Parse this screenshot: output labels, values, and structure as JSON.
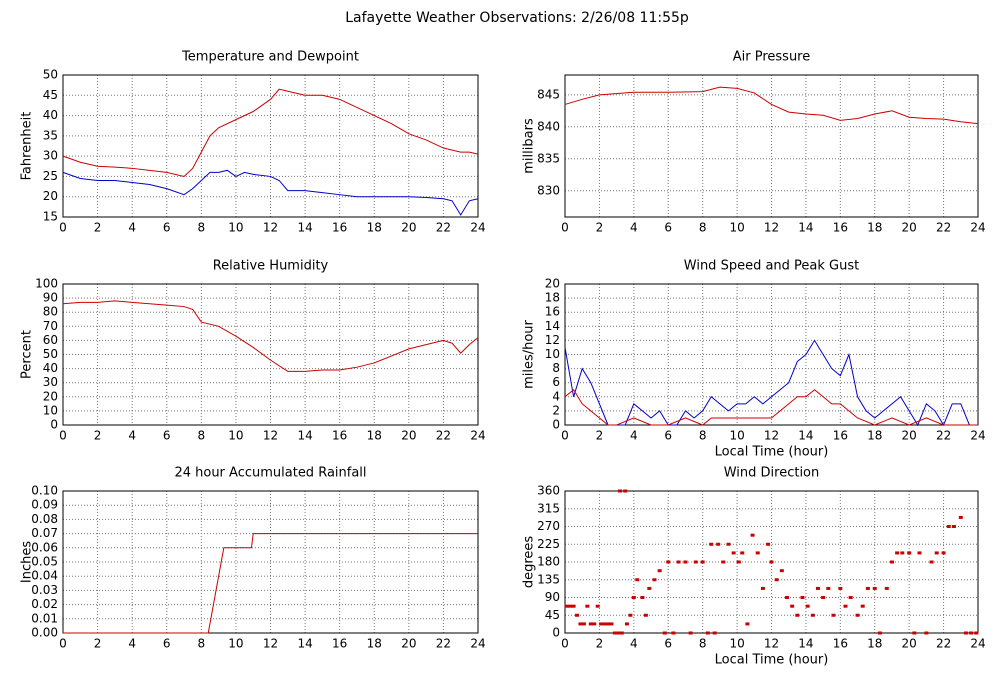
{
  "title": "Lafayette Weather Observations: 2/26/08 11:55p",
  "chart_data": [
    {
      "type": "line",
      "title": "Temperature and Dewpoint",
      "y_label": "Fahrenheit",
      "xlim": [
        0,
        24
      ],
      "xticks": [
        0,
        2,
        4,
        6,
        8,
        10,
        12,
        14,
        16,
        18,
        20,
        22,
        24
      ],
      "ylim": [
        15,
        50
      ],
      "yticks": [
        15,
        20,
        25,
        30,
        35,
        40,
        45,
        50
      ],
      "grid": true,
      "series": [
        {
          "color": "#cc0000",
          "x": [
            0,
            1,
            2,
            3,
            4,
            5,
            6,
            7,
            7.5,
            8,
            8.5,
            9,
            10,
            11,
            12,
            12.5,
            13,
            14,
            15,
            16,
            17,
            18,
            19,
            20,
            21,
            22,
            23,
            23.5,
            24
          ],
          "values": [
            30,
            28.5,
            27.5,
            27.3,
            27,
            26.5,
            26,
            25,
            27,
            31,
            35,
            37,
            39,
            41,
            44,
            46.5,
            46,
            45,
            45,
            44,
            42,
            40,
            38,
            35.5,
            34,
            32,
            31,
            31,
            30.5
          ]
        },
        {
          "color": "#0000cc",
          "x": [
            0,
            1,
            2,
            3,
            4,
            5,
            6,
            7,
            7.5,
            8,
            8.5,
            9,
            9.5,
            10,
            10.5,
            11,
            12,
            12.5,
            13,
            14,
            15,
            16,
            17,
            18,
            19,
            20,
            21,
            22,
            22.5,
            23,
            23.5,
            24
          ],
          "values": [
            26,
            24.5,
            24,
            24,
            23.5,
            23,
            22,
            20.5,
            22,
            24,
            26,
            26,
            26.5,
            25,
            26,
            25.5,
            25,
            24,
            21.5,
            21.5,
            21,
            20.5,
            20,
            20,
            20,
            20,
            19.8,
            19.5,
            19,
            15.5,
            19,
            19.5
          ]
        }
      ]
    },
    {
      "type": "line",
      "title": "Air Pressure",
      "y_label": "millibars",
      "xlim": [
        0,
        24
      ],
      "xticks": [
        0,
        2,
        4,
        6,
        8,
        10,
        12,
        14,
        16,
        18,
        20,
        22,
        24
      ],
      "ylim": [
        825.9,
        848.1
      ],
      "yticks": [
        830,
        835,
        840,
        845
      ],
      "grid": true,
      "series": [
        {
          "color": "#cc0000",
          "x": [
            0,
            1,
            2,
            4,
            6,
            8,
            9,
            10,
            11,
            12,
            13,
            14,
            15,
            16,
            17,
            18,
            19,
            20,
            21,
            22,
            23,
            24
          ],
          "values": [
            843.5,
            844.3,
            845,
            845.4,
            845.4,
            845.5,
            846.2,
            846,
            845.3,
            843.5,
            842.3,
            842,
            841.8,
            841,
            841.3,
            842,
            842.5,
            841.5,
            841.3,
            841.2,
            840.8,
            840.5
          ]
        }
      ]
    },
    {
      "type": "line",
      "title": "Relative Humidity",
      "y_label": "Percent",
      "xlim": [
        0,
        24
      ],
      "xticks": [
        0,
        2,
        4,
        6,
        8,
        10,
        12,
        14,
        16,
        18,
        20,
        22,
        24
      ],
      "ylim": [
        0,
        100
      ],
      "yticks": [
        0,
        10,
        20,
        30,
        40,
        50,
        60,
        70,
        80,
        90,
        100
      ],
      "grid": true,
      "series": [
        {
          "color": "#cc0000",
          "x": [
            0,
            1,
            2,
            3,
            4,
            5,
            6,
            7,
            7.5,
            8,
            9,
            10,
            11,
            12,
            13,
            14,
            15,
            16,
            17,
            18,
            19,
            20,
            21,
            22,
            22.5,
            23,
            23.5,
            24
          ],
          "values": [
            86,
            87,
            87,
            88,
            87,
            86,
            85,
            84,
            82,
            73,
            70,
            63,
            55,
            46,
            38,
            38,
            39,
            39,
            41,
            44,
            49,
            54,
            57,
            60,
            58,
            51,
            57,
            62
          ]
        }
      ]
    },
    {
      "type": "line",
      "title": "Wind Speed and Peak Gust",
      "y_label": "miles/hour",
      "x_label": "Local Time (hour)",
      "xlim": [
        0,
        24
      ],
      "xticks": [
        0,
        2,
        4,
        6,
        8,
        10,
        12,
        14,
        16,
        18,
        20,
        22,
        24
      ],
      "ylim": [
        0,
        20
      ],
      "yticks": [
        0,
        2,
        4,
        6,
        8,
        10,
        12,
        14,
        16,
        18,
        20
      ],
      "grid": true,
      "series": [
        {
          "color": "#0000cc",
          "x": [
            0,
            0.5,
            1,
            1.5,
            2,
            2.5,
            3,
            3.5,
            4,
            4.5,
            5,
            5.5,
            6,
            6.5,
            7,
            7.5,
            8,
            8.5,
            9,
            9.5,
            10,
            10.5,
            11,
            11.5,
            12,
            12.5,
            13,
            13.5,
            14,
            14.5,
            15,
            15.5,
            16,
            16.5,
            17,
            17.5,
            18,
            18.5,
            19,
            19.5,
            20,
            20.5,
            21,
            21.5,
            22,
            22.5,
            23,
            23.5,
            24
          ],
          "values": [
            11,
            4,
            8,
            6,
            3,
            0,
            0,
            0,
            3,
            2,
            1,
            2,
            0,
            0,
            2,
            1,
            2,
            4,
            3,
            2,
            3,
            3,
            4,
            3,
            4,
            5,
            6,
            9,
            10,
            12,
            10,
            8,
            7,
            10,
            4,
            2,
            1,
            2,
            3,
            4,
            2,
            0,
            3,
            2,
            0,
            3,
            3,
            0,
            0
          ]
        },
        {
          "color": "#cc0000",
          "x": [
            0,
            0.5,
            1,
            1.5,
            2,
            2.5,
            3,
            4,
            5,
            6,
            7,
            8,
            8.5,
            9,
            10,
            11,
            12,
            12.5,
            13,
            13.5,
            14,
            14.5,
            15,
            15.5,
            16,
            16.5,
            17,
            18,
            19,
            20,
            21,
            22,
            23,
            24
          ],
          "values": [
            4,
            5,
            3,
            2,
            1,
            0,
            0,
            1,
            0,
            0,
            1,
            0,
            1,
            1,
            1,
            1,
            1,
            2,
            3,
            4,
            4,
            5,
            4,
            3,
            3,
            2,
            1,
            0,
            1,
            0,
            1,
            0,
            0,
            0
          ]
        }
      ]
    },
    {
      "type": "line",
      "title": "24 hour Accumulated Rainfall",
      "y_label": "Inches",
      "xlim": [
        0,
        24
      ],
      "xticks": [
        0,
        2,
        4,
        6,
        8,
        10,
        12,
        14,
        16,
        18,
        20,
        22,
        24
      ],
      "ylim": [
        0,
        0.1
      ],
      "yticks": [
        {
          "value": 0,
          "label": "0.00"
        },
        {
          "value": 0.01,
          "label": "0.01"
        },
        {
          "value": 0.02,
          "label": "0.02"
        },
        {
          "value": 0.03,
          "label": "0.03"
        },
        {
          "value": 0.04,
          "label": "0.04"
        },
        {
          "value": 0.05,
          "label": "0.05"
        },
        {
          "value": 0.06,
          "label": "0.06"
        },
        {
          "value": 0.07,
          "label": "0.07"
        },
        {
          "value": 0.08,
          "label": "0.08"
        },
        {
          "value": 0.09,
          "label": "0.09"
        },
        {
          "value": 0.1,
          "label": "0.10"
        }
      ],
      "grid": true,
      "series": [
        {
          "color": "#cc0000",
          "x": [
            0,
            8.4,
            9.3,
            10.9,
            11,
            24
          ],
          "values": [
            0,
            0,
            0.06,
            0.06,
            0.07,
            0.07
          ]
        }
      ]
    },
    {
      "type": "scatter",
      "title": "Wind Direction",
      "y_label": "degrees",
      "x_label": "Local Time (hour)",
      "xlim": [
        0,
        24
      ],
      "xticks": [
        0,
        2,
        4,
        6,
        8,
        10,
        12,
        14,
        16,
        18,
        20,
        22,
        24
      ],
      "ylim": [
        0,
        360
      ],
      "yticks": [
        0,
        45,
        90,
        135,
        180,
        225,
        270,
        315,
        360
      ],
      "grid": true,
      "color": "#cc0000",
      "x": [
        0.1,
        0.3,
        0.5,
        0.7,
        0.9,
        1.1,
        1.3,
        1.5,
        1.7,
        1.9,
        2.1,
        2.3,
        2.5,
        2.7,
        2.9,
        3.1,
        3.2,
        3.3,
        3.5,
        3.6,
        3.8,
        4,
        4.2,
        4.5,
        4.7,
        4.9,
        5.2,
        5.5,
        5.8,
        6,
        6.3,
        6.6,
        7,
        7.3,
        7.6,
        8,
        8.3,
        8.5,
        8.7,
        8.9,
        9.2,
        9.5,
        9.8,
        10.1,
        10.3,
        10.6,
        10.9,
        11.2,
        11.5,
        11.8,
        12,
        12.3,
        12.6,
        12.9,
        13.2,
        13.5,
        13.8,
        14.1,
        14.4,
        14.7,
        15,
        15.3,
        15.6,
        16,
        16.3,
        16.6,
        17,
        17.3,
        17.6,
        18,
        18.3,
        18.7,
        19,
        19.3,
        19.6,
        20,
        20.3,
        20.6,
        21,
        21.3,
        21.6,
        22,
        22.3,
        22.6,
        23,
        23.3,
        23.6,
        23.9
      ],
      "values": [
        68,
        68,
        68,
        45,
        23,
        23,
        68,
        23,
        23,
        68,
        23,
        23,
        23,
        23,
        0,
        0,
        360,
        0,
        360,
        23,
        45,
        90,
        135,
        90,
        45,
        113,
        135,
        158,
        0,
        180,
        0,
        180,
        180,
        0,
        180,
        180,
        0,
        225,
        0,
        225,
        180,
        225,
        203,
        180,
        203,
        23,
        248,
        203,
        113,
        225,
        180,
        135,
        158,
        90,
        68,
        45,
        90,
        68,
        45,
        113,
        90,
        113,
        45,
        113,
        68,
        90,
        45,
        68,
        113,
        113,
        0,
        113,
        180,
        203,
        203,
        203,
        0,
        203,
        0,
        180,
        203,
        203,
        270,
        270,
        293,
        0,
        0,
        0
      ]
    }
  ]
}
